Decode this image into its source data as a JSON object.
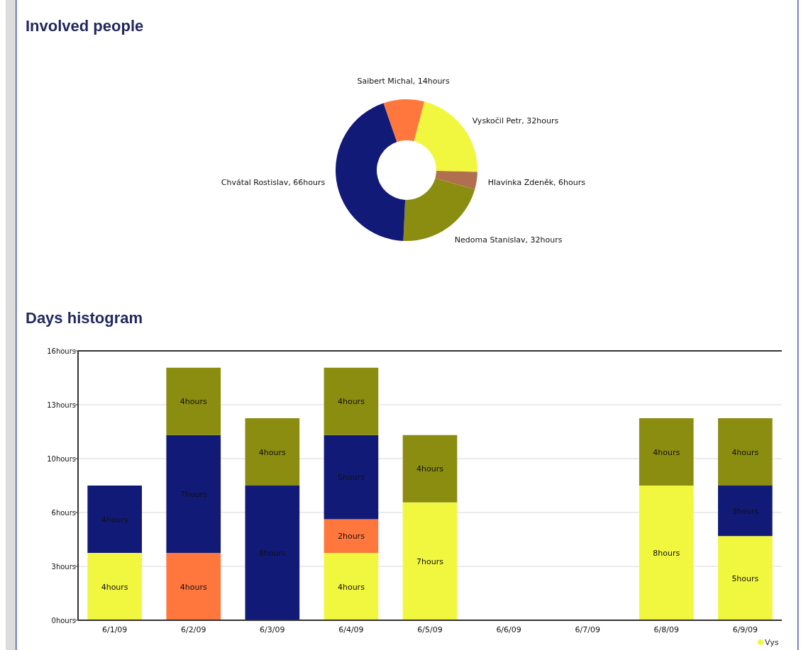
{
  "chart_data": [
    {
      "type": "donut",
      "title": "Involved people",
      "categories": [
        "Saibert Michal",
        "Vyskočil Petr",
        "Hlavinka Zdeněk",
        "Nedoma Stanislav",
        "Chvátal Rostislav"
      ],
      "values": [
        14,
        32,
        6,
        32,
        66
      ],
      "value_labels": [
        "14hours",
        "32hours",
        "6hours",
        "32hours",
        "66hours"
      ],
      "colors": [
        "#ff773d",
        "#f0f73e",
        "#b07050",
        "#8a8d10",
        "#121a78"
      ]
    },
    {
      "type": "bar",
      "title": "Days histogram",
      "stacked": true,
      "categories": [
        "6/1/09",
        "6/2/09",
        "6/3/09",
        "6/4/09",
        "6/5/09",
        "6/6/09",
        "6/7/09",
        "6/8/09",
        "6/9/09"
      ],
      "series": [
        {
          "name": "Vys",
          "color": "#f0f73e",
          "values": [
            4,
            0,
            0,
            4,
            7,
            0,
            0,
            8,
            5
          ],
          "value_labels": [
            "4hours",
            null,
            null,
            "4hours",
            "7hours",
            null,
            null,
            "8hours",
            "5hours"
          ]
        },
        {
          "color": "#ff773d",
          "values": [
            0,
            4,
            0,
            2,
            0,
            0,
            0,
            0,
            0
          ],
          "value_labels": [
            null,
            "4hours",
            null,
            "2hours",
            null,
            null,
            null,
            null,
            null
          ]
        },
        {
          "color": "#121a78",
          "values": [
            4,
            7,
            8,
            5,
            0,
            0,
            0,
            0,
            3
          ],
          "value_labels": [
            "4hours",
            "7hours",
            "8hours",
            "5hours",
            null,
            null,
            null,
            null,
            "3hours"
          ]
        },
        {
          "color": "#8a8d10",
          "values": [
            0,
            4,
            4,
            4,
            4,
            0,
            0,
            4,
            4
          ],
          "value_labels": [
            null,
            "4hours",
            "4hours",
            "4hours",
            "4hours",
            null,
            null,
            "4hours",
            "4hours"
          ]
        }
      ],
      "ylim": [
        0,
        16
      ],
      "yticks": [
        {
          "value": 0,
          "label": "0hours"
        },
        {
          "value": 3.2,
          "label": "3hours"
        },
        {
          "value": 6.4,
          "label": "6hours"
        },
        {
          "value": 9.6,
          "label": "10hours"
        },
        {
          "value": 12.8,
          "label": "13hours"
        },
        {
          "value": 16,
          "label": "16hours"
        }
      ],
      "grid": "y",
      "legend": "bottom right"
    }
  ]
}
